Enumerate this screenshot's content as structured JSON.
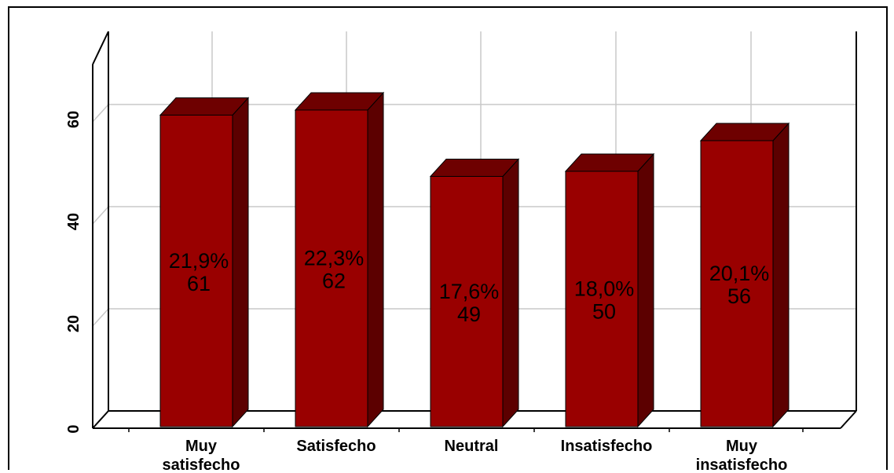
{
  "chart_data": {
    "type": "bar",
    "categories": [
      "Muy satisfecho",
      "Satisfecho",
      "Neutral",
      "Insatisfecho",
      "Muy insatisfecho"
    ],
    "category_lines": [
      [
        "Muy",
        "satisfecho"
      ],
      [
        "Satisfecho"
      ],
      [
        "Neutral"
      ],
      [
        "Insatisfecho"
      ],
      [
        "Muy",
        "insatisfecho"
      ]
    ],
    "values": [
      61,
      62,
      49,
      50,
      56
    ],
    "percent_labels": [
      "21,9%",
      "22,3%",
      "17,6%",
      "18,0%",
      "20,1%"
    ],
    "count_labels": [
      "61",
      "62",
      "49",
      "50",
      "56"
    ],
    "yticks": [
      0,
      20,
      40,
      60
    ],
    "ylim": [
      0,
      70
    ],
    "grid": true,
    "three_d": true,
    "title": "",
    "xlabel": "",
    "ylabel": "",
    "colors": {
      "bar_front": "#990000",
      "bar_side": "#5c0000",
      "bar_top": "#6e0000",
      "grid": "#c8c8c8",
      "axis": "#000000"
    }
  }
}
